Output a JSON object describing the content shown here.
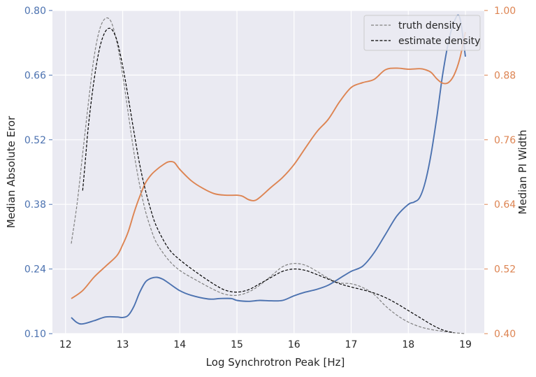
{
  "chart_data": {
    "type": "line",
    "xlabel": "Log Synchrotron Peak [Hz]",
    "ylabel_left": "Median Absolute Eror",
    "ylabel_right": "Median PI Width",
    "x_ticks": [
      12,
      13,
      14,
      15,
      16,
      17,
      18,
      19
    ],
    "x_tick_labels": [
      "12",
      "13",
      "14",
      "15",
      "16",
      "17",
      "18",
      "19"
    ],
    "xlim": [
      11.77,
      19.33
    ],
    "ylim_left": [
      0.1,
      0.8
    ],
    "ylim_right": [
      0.4,
      1.0
    ],
    "y_ticks_left": [
      "0.10",
      "0.24",
      "0.38",
      "0.52",
      "0.66",
      "0.80"
    ],
    "y_ticks_right": [
      "0.40",
      "0.52",
      "0.64",
      "0.76",
      "0.88",
      "1.00"
    ],
    "grid": true,
    "legend_position": "top-right",
    "colors": {
      "background": "#eaeaf2",
      "grid": "#ffffff",
      "left_axis": "#4c72b0",
      "right_axis": "#dd8452",
      "truth_density": "#808080",
      "estimate_density": "#000000",
      "text": "#262626"
    },
    "series": [
      {
        "name": "truth density",
        "axis": "left",
        "style": "dashed",
        "color": "#808080",
        "in_legend": true,
        "x": [
          12.1,
          12.2,
          12.3,
          12.4,
          12.5,
          12.6,
          12.7,
          12.8,
          12.9,
          13.0,
          13.1,
          13.2,
          13.3,
          13.4,
          13.5,
          13.6,
          13.8,
          14.0,
          14.3,
          14.6,
          14.8,
          15.0,
          15.2,
          15.4,
          15.6,
          15.8,
          16.0,
          16.2,
          16.4,
          16.6,
          16.8,
          17.0,
          17.2,
          17.4,
          17.6,
          17.8,
          18.0,
          18.2,
          18.4,
          18.6,
          18.8,
          19.0
        ],
        "y": [
          0.295,
          0.38,
          0.49,
          0.6,
          0.7,
          0.76,
          0.783,
          0.775,
          0.73,
          0.66,
          0.575,
          0.49,
          0.42,
          0.365,
          0.325,
          0.295,
          0.26,
          0.237,
          0.215,
          0.195,
          0.185,
          0.183,
          0.19,
          0.205,
          0.225,
          0.245,
          0.252,
          0.248,
          0.235,
          0.22,
          0.21,
          0.208,
          0.2,
          0.185,
          0.16,
          0.14,
          0.125,
          0.115,
          0.109,
          0.105,
          0.102,
          0.1
        ]
      },
      {
        "name": "estimate density",
        "axis": "left",
        "style": "dashed",
        "color": "#000000",
        "in_legend": true,
        "x": [
          12.3,
          12.35,
          12.4,
          12.5,
          12.6,
          12.7,
          12.8,
          12.9,
          13.0,
          13.1,
          13.2,
          13.3,
          13.4,
          13.5,
          13.6,
          13.8,
          14.0,
          14.3,
          14.6,
          14.8,
          15.0,
          15.2,
          15.4,
          15.6,
          15.8,
          16.0,
          16.2,
          16.4,
          16.6,
          16.8,
          17.0,
          17.2,
          17.4,
          17.6,
          17.8,
          18.0,
          18.2,
          18.4,
          18.6,
          18.8
        ],
        "y": [
          0.41,
          0.48,
          0.55,
          0.65,
          0.72,
          0.755,
          0.76,
          0.735,
          0.68,
          0.61,
          0.535,
          0.465,
          0.41,
          0.365,
          0.33,
          0.285,
          0.26,
          0.232,
          0.207,
          0.194,
          0.19,
          0.195,
          0.208,
          0.222,
          0.235,
          0.24,
          0.237,
          0.228,
          0.218,
          0.208,
          0.201,
          0.195,
          0.188,
          0.178,
          0.165,
          0.15,
          0.135,
          0.12,
          0.108,
          0.102
        ]
      },
      {
        "name": "",
        "axis": "left",
        "style": "solid",
        "color": "#4c72b0",
        "in_legend": false,
        "x": [
          12.1,
          12.2,
          12.3,
          12.5,
          12.7,
          12.9,
          13.0,
          13.1,
          13.2,
          13.3,
          13.4,
          13.5,
          13.6,
          13.7,
          13.8,
          14.0,
          14.2,
          14.5,
          14.7,
          14.9,
          15.0,
          15.2,
          15.4,
          15.6,
          15.8,
          16.0,
          16.2,
          16.4,
          16.6,
          16.8,
          17.0,
          17.2,
          17.4,
          17.6,
          17.8,
          18.0,
          18.1,
          18.2,
          18.3,
          18.4,
          18.5,
          18.6,
          18.7,
          18.8,
          18.9,
          19.0
        ],
        "y": [
          0.135,
          0.124,
          0.121,
          0.128,
          0.136,
          0.136,
          0.135,
          0.14,
          0.16,
          0.19,
          0.212,
          0.22,
          0.222,
          0.218,
          0.21,
          0.193,
          0.183,
          0.175,
          0.176,
          0.176,
          0.172,
          0.17,
          0.172,
          0.171,
          0.172,
          0.182,
          0.19,
          0.196,
          0.205,
          0.22,
          0.235,
          0.246,
          0.275,
          0.315,
          0.355,
          0.38,
          0.385,
          0.395,
          0.43,
          0.49,
          0.57,
          0.66,
          0.73,
          0.775,
          0.785,
          0.7
        ]
      },
      {
        "name": "",
        "axis": "right",
        "style": "solid",
        "color": "#dd8452",
        "in_legend": false,
        "x": [
          12.1,
          12.3,
          12.5,
          12.7,
          12.9,
          13.0,
          13.1,
          13.2,
          13.3,
          13.4,
          13.5,
          13.6,
          13.7,
          13.8,
          13.9,
          14.0,
          14.2,
          14.4,
          14.6,
          14.8,
          15.0,
          15.1,
          15.2,
          15.3,
          15.4,
          15.6,
          15.8,
          16.0,
          16.2,
          16.4,
          16.6,
          16.8,
          17.0,
          17.2,
          17.4,
          17.6,
          17.8,
          18.0,
          18.2,
          18.3,
          18.4,
          18.5,
          18.6,
          18.7,
          18.8,
          18.9,
          19.0
        ],
        "y": [
          0.465,
          0.48,
          0.505,
          0.525,
          0.545,
          0.565,
          0.59,
          0.625,
          0.655,
          0.68,
          0.695,
          0.705,
          0.713,
          0.719,
          0.718,
          0.705,
          0.684,
          0.67,
          0.66,
          0.657,
          0.657,
          0.655,
          0.649,
          0.647,
          0.653,
          0.672,
          0.69,
          0.714,
          0.745,
          0.775,
          0.798,
          0.831,
          0.857,
          0.866,
          0.872,
          0.89,
          0.893,
          0.891,
          0.892,
          0.89,
          0.885,
          0.873,
          0.865,
          0.866,
          0.88,
          0.91,
          0.96
        ]
      }
    ]
  }
}
